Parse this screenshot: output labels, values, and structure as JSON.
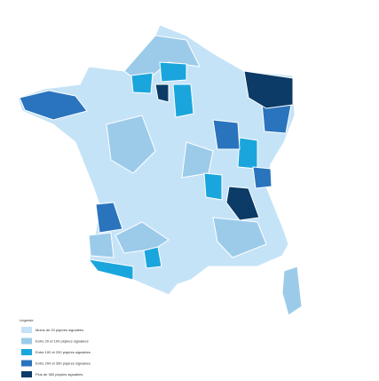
{
  "legend": {
    "title": "Légende",
    "classes": [
      {
        "label": "Moins de 20 piqûres signalées",
        "color": "#c5e3f7"
      },
      {
        "label": "Entre 20 et 100 piqûres signalées",
        "color": "#9ccbea"
      },
      {
        "label": "Entre 100 et 200 piqûres signalées",
        "color": "#1aa6dc"
      },
      {
        "label": "Entre 200 et 350 piqûres signalées",
        "color": "#2a74bd"
      },
      {
        "label": "Plus de 350 piqûres signalées",
        "color": "#0b3b66"
      }
    ]
  }
}
